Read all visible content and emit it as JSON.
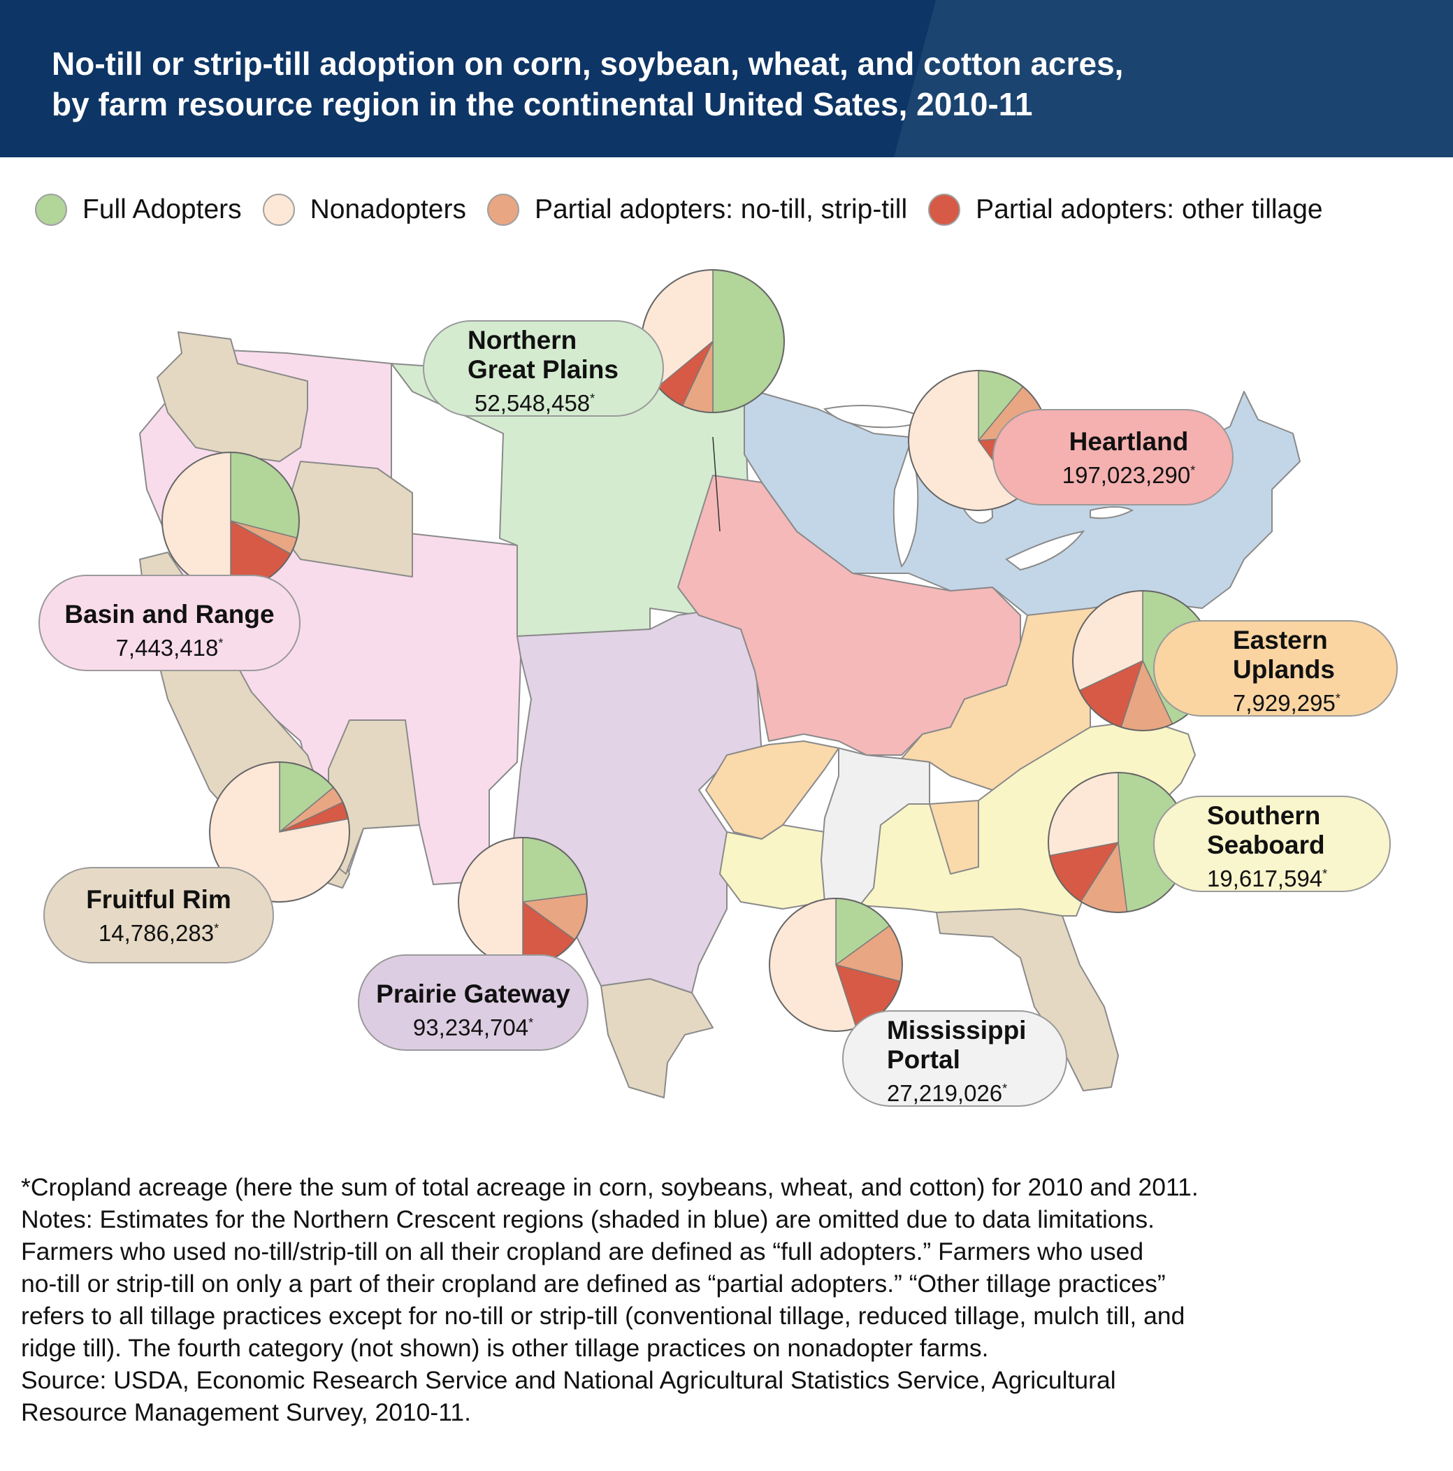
{
  "title": {
    "line1": "No-till or strip-till adoption on corn, soybean, wheat, and cotton acres,",
    "line2": "by farm resource region in the continental United Sates, 2010-11"
  },
  "legend": [
    {
      "label": "Full Adopters",
      "color": "#b2d59a"
    },
    {
      "label": "Nonadopters",
      "color": "#fde8d8"
    },
    {
      "label": "Partial adopters: no-till, strip-till",
      "color": "#e8a683"
    },
    {
      "label": "Partial adopters: other tillage",
      "color": "#d65a45"
    }
  ],
  "regions": [
    {
      "id": "northern-great-plains",
      "name1": "Northern",
      "name2": "Great Plains",
      "value": "52,548,458",
      "star": "*",
      "fill": "#d4ebd0",
      "pill": "#d4ebd0",
      "shares": {
        "full": 0.5,
        "partial_notill": 0.07,
        "partial_other": 0.07,
        "non": 0.36
      }
    },
    {
      "id": "heartland",
      "name1": "Heartland",
      "name2": "",
      "value": "197,023,290",
      "star": "*",
      "fill": "#f5b9b9",
      "pill": "#f5b0b0",
      "shares": {
        "full": 0.11,
        "partial_notill": 0.13,
        "partial_other": 0.16,
        "non": 0.6
      }
    },
    {
      "id": "basin-and-range",
      "name1": "Basin and Range",
      "name2": "",
      "value": "7,443,418",
      "star": "*",
      "fill": "#f8dcec",
      "pill": "#f9dcea",
      "shares": {
        "full": 0.29,
        "partial_notill": 0.04,
        "partial_other": 0.17,
        "non": 0.5
      }
    },
    {
      "id": "eastern-uplands",
      "name1": "Eastern",
      "name2": "Uplands",
      "value": "7,929,295",
      "star": "*",
      "fill": "#fad9ab",
      "pill": "#fad5a2",
      "shares": {
        "full": 0.43,
        "partial_notill": 0.12,
        "partial_other": 0.13,
        "non": 0.32
      }
    },
    {
      "id": "fruitful-rim",
      "name1": "Fruitful Rim",
      "name2": "",
      "value": "14,786,283",
      "star": "*",
      "fill": "#e4d8c2",
      "pill": "#e6dac6",
      "shares": {
        "full": 0.14,
        "partial_notill": 0.04,
        "partial_other": 0.04,
        "non": 0.78
      }
    },
    {
      "id": "southern-seaboard",
      "name1": "Southern",
      "name2": "Seaboard",
      "value": "19,617,594",
      "star": "*",
      "fill": "#f9f5c7",
      "pill": "#f9f5cc",
      "shares": {
        "full": 0.48,
        "partial_notill": 0.11,
        "partial_other": 0.13,
        "non": 0.28
      }
    },
    {
      "id": "prairie-gateway",
      "name1": "Prairie Gateway",
      "name2": "",
      "value": "93,234,704",
      "star": "*",
      "fill": "#e2d3e6",
      "pill": "#ddcde2",
      "shares": {
        "full": 0.23,
        "partial_notill": 0.12,
        "partial_other": 0.15,
        "non": 0.5
      }
    },
    {
      "id": "mississippi-portal",
      "name1": "Mississippi",
      "name2": "Portal",
      "value": "27,219,026",
      "star": "*",
      "fill": "#f0f0f0",
      "pill": "#f2f2f2",
      "shares": {
        "full": 0.15,
        "partial_notill": 0.14,
        "partial_other": 0.16,
        "non": 0.55
      }
    },
    {
      "id": "northern-crescent",
      "name1": "",
      "name2": "",
      "value": "",
      "star": "",
      "fill": "#c3d6e7",
      "pill": "",
      "shares": null
    }
  ],
  "notes": [
    "*Cropland acreage (here the sum of total acreage in corn, soybeans, wheat, and cotton) for 2010 and 2011.",
    "Notes: Estimates for the Northern Crescent regions (shaded in blue) are omitted due to data limitations.",
    "Farmers who used no-till/strip-till on all their cropland are defined as “full adopters.” Farmers who used",
    "no-till or strip-till on only a part of their cropland are defined as “partial adopters.” “Other tillage practices”",
    "refers to all tillage practices except for no-till or strip-till (conventional tillage, reduced tillage, mulch till, and",
    "ridge till). The fourth category (not shown) is other tillage practices on nonadopter farms.",
    "Source: USDA, Economic Research Service and National Agricultural Statistics Service, Agricultural",
    "Resource Management Survey, 2010-11."
  ]
}
